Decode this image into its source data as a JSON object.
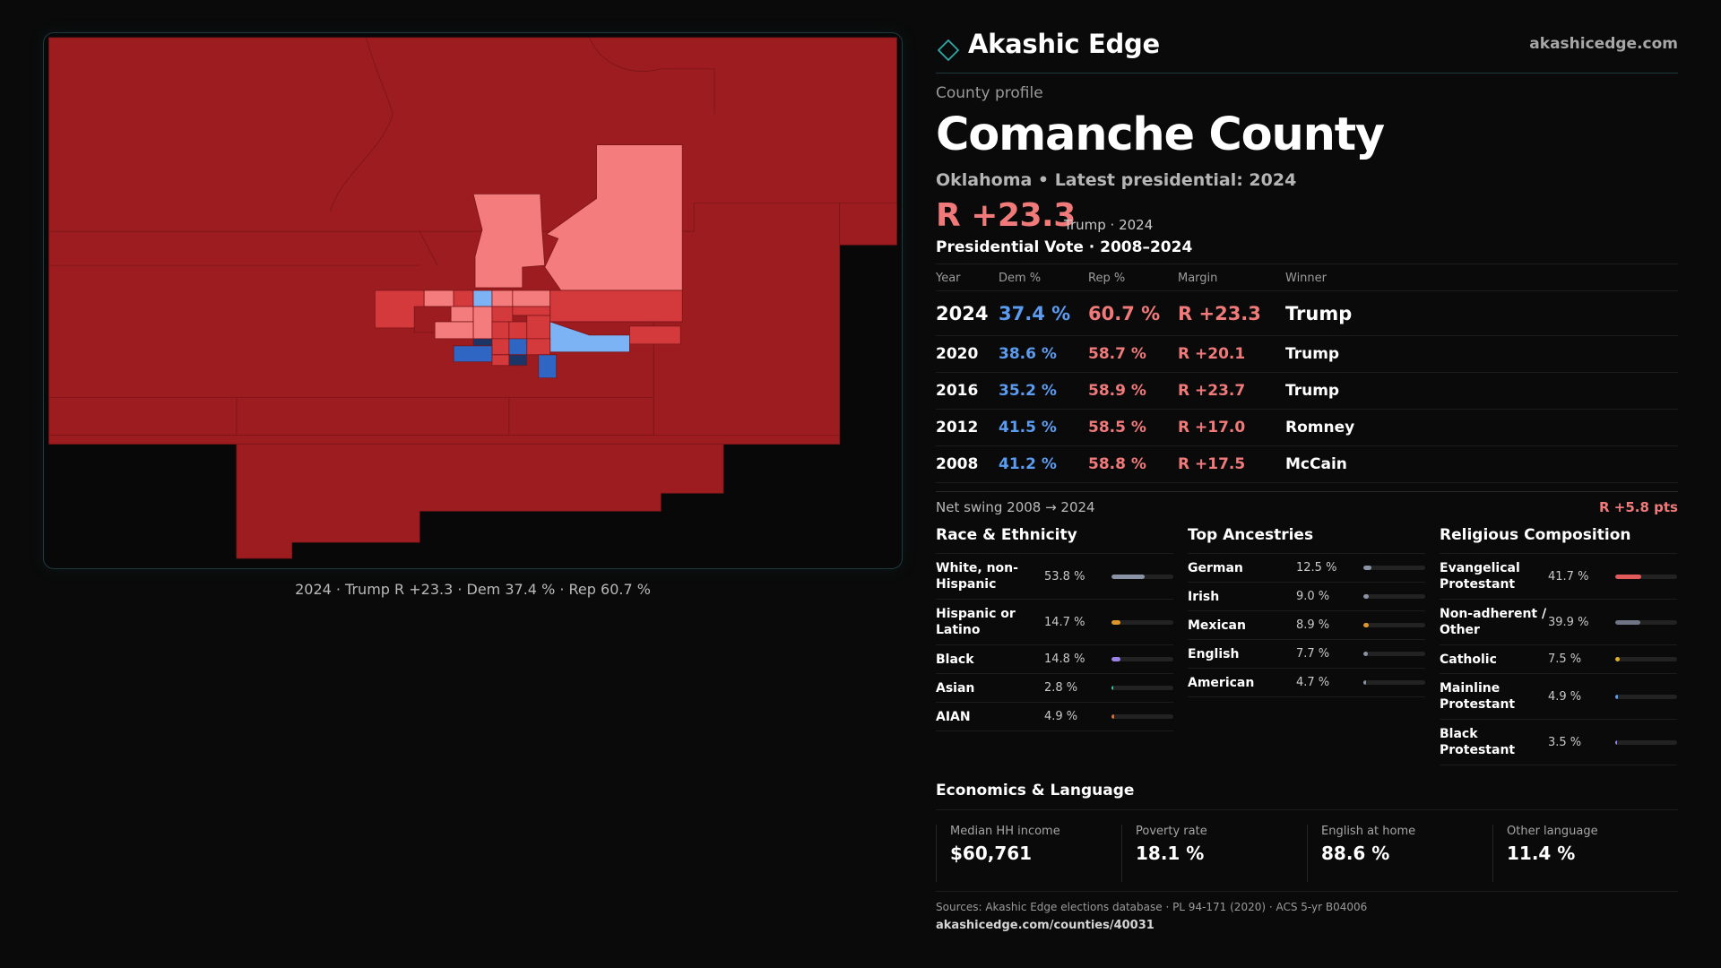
{
  "brand": {
    "name": "Akashic Edge",
    "url": "akashicedge.com"
  },
  "profile": {
    "eyebrow": "County profile",
    "title": "Comanche County",
    "subtitle": "Oklahoma • Latest presidential: 2024",
    "margin": "R +23.3",
    "margin_note": "Trump · 2024"
  },
  "map": {
    "caption": "2024 · Trump R +23.3 · Dem 37.4 % · Rep 60.7 %",
    "colors": {
      "rep_strong": "#9c1c1f",
      "rep_mid": "#d4393b",
      "rep_lean": "#f47c7c",
      "dem_lean": "#7cb3f4",
      "dem_mid": "#2f66c4",
      "dem_strong": "#1a3566"
    }
  },
  "vote_table": {
    "title": "Presidential Vote · 2008–2024",
    "headers": {
      "year": "Year",
      "dem": "Dem %",
      "rep": "Rep %",
      "margin": "Margin",
      "winner": "Winner"
    },
    "rows": [
      {
        "year": "2024",
        "dem": "37.4 %",
        "rep": "60.7 %",
        "margin": "R +23.3",
        "winner": "Trump"
      },
      {
        "year": "2020",
        "dem": "38.6 %",
        "rep": "58.7 %",
        "margin": "R +20.1",
        "winner": "Trump"
      },
      {
        "year": "2016",
        "dem": "35.2 %",
        "rep": "58.9 %",
        "margin": "R +23.7",
        "winner": "Trump"
      },
      {
        "year": "2012",
        "dem": "41.5 %",
        "rep": "58.5 %",
        "margin": "R +17.0",
        "winner": "Romney"
      },
      {
        "year": "2008",
        "dem": "41.2 %",
        "rep": "58.8 %",
        "margin": "R +17.5",
        "winner": "McCain"
      }
    ],
    "swing_label": "Net swing 2008 → 2024",
    "swing_value": "R +5.8 pts"
  },
  "race": {
    "title": "Race & Ethnicity",
    "rows": [
      {
        "label": "White, non-Hispanic",
        "value": "53.8 %",
        "pct": 53.8,
        "color": "#8a93a6"
      },
      {
        "label": "Hispanic or Latino",
        "value": "14.7 %",
        "pct": 14.7,
        "color": "#e0962a"
      },
      {
        "label": "Black",
        "value": "14.8 %",
        "pct": 14.8,
        "color": "#9a82e6"
      },
      {
        "label": "Asian",
        "value": "2.8 %",
        "pct": 2.8,
        "color": "#3cc0a8"
      },
      {
        "label": "AIAN",
        "value": "4.9 %",
        "pct": 4.9,
        "color": "#d2703a"
      }
    ]
  },
  "ancestry": {
    "title": "Top Ancestries",
    "rows": [
      {
        "label": "German",
        "value": "12.5 %",
        "pct": 12.5,
        "color": "#8a93a6"
      },
      {
        "label": "Irish",
        "value": "9.0 %",
        "pct": 9.0,
        "color": "#8a93a6"
      },
      {
        "label": "Mexican",
        "value": "8.9 %",
        "pct": 8.9,
        "color": "#e0962a"
      },
      {
        "label": "English",
        "value": "7.7 %",
        "pct": 7.7,
        "color": "#8a93a6"
      },
      {
        "label": "American",
        "value": "4.7 %",
        "pct": 4.7,
        "color": "#8a93a6"
      }
    ]
  },
  "religion": {
    "title": "Religious Composition",
    "rows": [
      {
        "label": "Evangelical Protestant",
        "value": "41.7 %",
        "pct": 41.7,
        "color": "#e05a5a"
      },
      {
        "label": "Non-adherent / Other",
        "value": "39.9 %",
        "pct": 39.9,
        "color": "#6f7585"
      },
      {
        "label": "Catholic",
        "value": "7.5 %",
        "pct": 7.5,
        "color": "#e0b02a"
      },
      {
        "label": "Mainline Protestant",
        "value": "4.9 %",
        "pct": 4.9,
        "color": "#5b9bf0"
      },
      {
        "label": "Black Protestant",
        "value": "3.5 %",
        "pct": 3.5,
        "color": "#9a82e6"
      }
    ]
  },
  "economics": {
    "title": "Economics & Language",
    "cells": [
      {
        "label": "Median HH income",
        "value": "$60,761"
      },
      {
        "label": "Poverty rate",
        "value": "18.1 %"
      },
      {
        "label": "English at home",
        "value": "88.6 %"
      },
      {
        "label": "Other language",
        "value": "11.4 %"
      }
    ]
  },
  "sources": {
    "line": "Sources: Akashic Edge elections database · PL 94-171 (2020) · ACS 5-yr B04006",
    "url": "akashicedge.com/counties/40031"
  }
}
